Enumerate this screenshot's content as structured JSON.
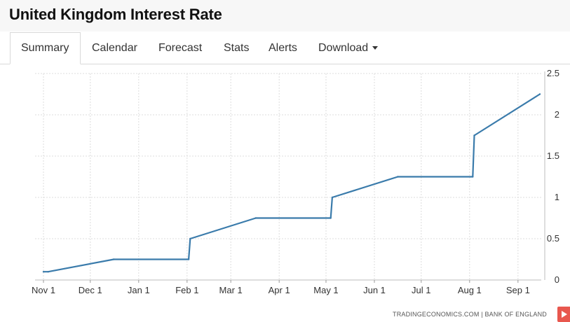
{
  "header": {
    "title": "United Kingdom Interest Rate"
  },
  "tabs": [
    {
      "label": "Summary",
      "active": true
    },
    {
      "label": "Calendar"
    },
    {
      "label": "Forecast"
    },
    {
      "label": "Stats"
    },
    {
      "label": "Alerts"
    },
    {
      "label": "Download",
      "dropdown": true
    }
  ],
  "chart_data": {
    "type": "line",
    "x_tick_labels": [
      "Nov 1",
      "Dec 1",
      "Jan 1",
      "Feb 1",
      "Mar 1",
      "Apr 1",
      "May 1",
      "Jun 1",
      "Jul 1",
      "Aug 1",
      "Sep 1"
    ],
    "y_tick_labels": [
      "0",
      "0.5",
      "1",
      "1.5",
      "2",
      "2.5"
    ],
    "ylim": [
      0,
      2.5
    ],
    "y_axis_side": "right",
    "grid": true,
    "series": [
      {
        "color": "#3a7bab",
        "points": [
          {
            "x": "Nov 1",
            "y": 0.1
          },
          {
            "x": "Nov 4",
            "y": 0.1
          },
          {
            "x": "Dec 16",
            "y": 0.25
          },
          {
            "x": "Feb 2",
            "y": 0.25
          },
          {
            "x": "Feb 3",
            "y": 0.5
          },
          {
            "x": "Mar 17",
            "y": 0.75
          },
          {
            "x": "May 4",
            "y": 0.75
          },
          {
            "x": "May 5",
            "y": 1.0
          },
          {
            "x": "Jun 16",
            "y": 1.25
          },
          {
            "x": "Aug 3",
            "y": 1.25
          },
          {
            "x": "Aug 4",
            "y": 1.75
          },
          {
            "x": "Sep 15",
            "y": 2.25
          }
        ]
      }
    ]
  },
  "footer": {
    "source": "TRADINGECONOMICS.COM | BANK OF ENGLAND"
  }
}
